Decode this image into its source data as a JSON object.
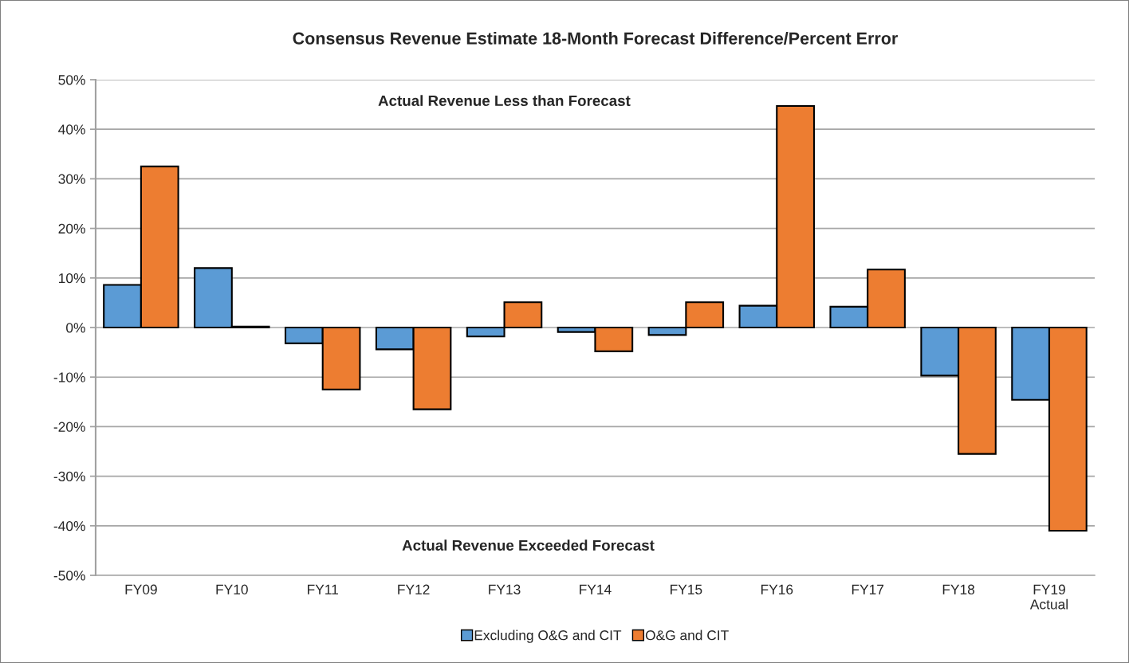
{
  "chart_data": {
    "type": "bar",
    "title": "Consensus Revenue Estimate 18-Month Forecast Difference/Percent Error",
    "categories": [
      "FY09",
      "FY10",
      "FY11",
      "FY12",
      "FY13",
      "FY14",
      "FY15",
      "FY16",
      "FY17",
      "FY18",
      "FY19\nActual"
    ],
    "series": [
      {
        "name": "Excluding O&G and CIT",
        "color": "#5b9bd5",
        "values": [
          8.6,
          12.0,
          -3.2,
          -4.4,
          -1.8,
          -0.9,
          -1.5,
          4.4,
          4.2,
          -9.7,
          -14.6
        ]
      },
      {
        "name": "O&G and CIT",
        "color": "#ed7d31",
        "values": [
          32.5,
          0.2,
          -12.5,
          -16.5,
          5.1,
          -4.8,
          5.1,
          44.7,
          11.7,
          -25.5,
          -41.0
        ]
      }
    ],
    "ylim": [
      -50,
      50
    ],
    "yticks": [
      {
        "value": -50,
        "label": "-50%"
      },
      {
        "value": -40,
        "label": "-40%"
      },
      {
        "value": -30,
        "label": "-30%"
      },
      {
        "value": -20,
        "label": "-20%"
      },
      {
        "value": -10,
        "label": "-10%"
      },
      {
        "value": 0,
        "label": "0%"
      },
      {
        "value": 10,
        "label": "10%"
      },
      {
        "value": 20,
        "label": "20%"
      },
      {
        "value": 30,
        "label": "30%"
      },
      {
        "value": 40,
        "label": "40%"
      },
      {
        "value": 50,
        "label": "50%"
      }
    ],
    "grid": "y",
    "legend": "bottom",
    "annotations": [
      "Actual Revenue Less than Forecast",
      "Actual Revenue Exceeded Forecast"
    ]
  }
}
